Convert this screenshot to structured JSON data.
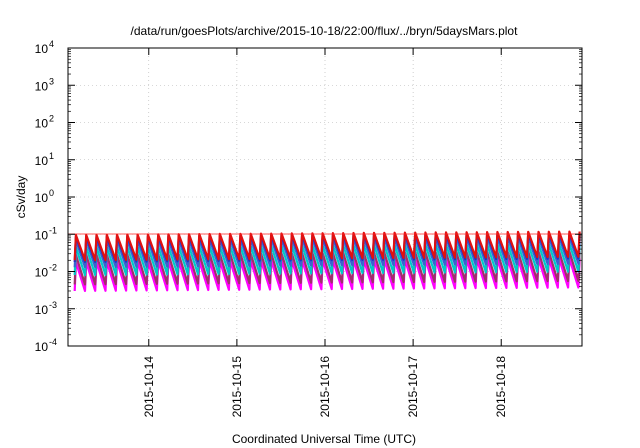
{
  "chart_data": {
    "type": "line",
    "title": "/data/run/goesPlots/archive/2015-10-18/22:00/flux/../bryn/5daysMars.plot",
    "xlabel": "Coordinated Universal Time (UTC)",
    "ylabel": "cSv/day",
    "yscale": "log",
    "ylim": [
      0.0001,
      10000
    ],
    "y_ticks": [
      {
        "base": "10",
        "exp": "-4"
      },
      {
        "base": "10",
        "exp": "-3"
      },
      {
        "base": "10",
        "exp": "-2"
      },
      {
        "base": "10",
        "exp": "-1"
      },
      {
        "base": "10",
        "exp": "0"
      },
      {
        "base": "10",
        "exp": "1"
      },
      {
        "base": "10",
        "exp": "2"
      },
      {
        "base": "10",
        "exp": "3"
      },
      {
        "base": "10",
        "exp": "4"
      }
    ],
    "xlim": [
      "2015-10-13T02:00",
      "2015-10-18T22:00"
    ],
    "x_ticks": [
      "2015-10-14",
      "2015-10-15",
      "2015-10-16",
      "2015-10-17",
      "2015-10-18"
    ],
    "grid": true,
    "reference_line": 0.1,
    "oscillation_period_hours": 2.8,
    "series": [
      {
        "color": "#ff00ff",
        "peak": 0.018,
        "trough": 0.003
      },
      {
        "color": "#a0306a",
        "peak": 0.028,
        "trough": 0.0045
      },
      {
        "color": "#00c8c8",
        "peak": 0.045,
        "trough": 0.008
      },
      {
        "color": "#3a62d0",
        "peak": 0.07,
        "trough": 0.013
      },
      {
        "color": "#2030c8",
        "peak": 0.085,
        "trough": 0.018
      },
      {
        "color": "#e01010",
        "peak": 0.095,
        "trough": 0.02
      }
    ]
  }
}
